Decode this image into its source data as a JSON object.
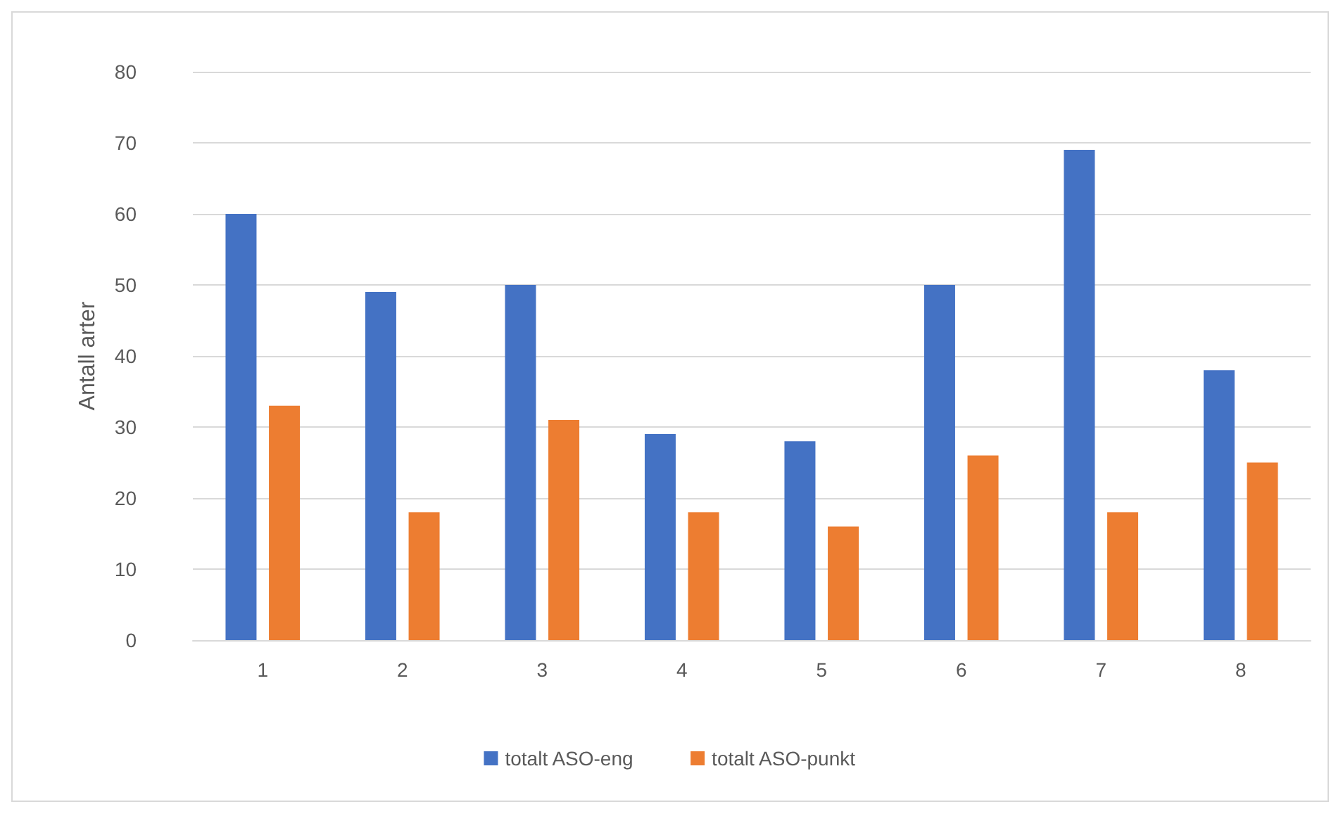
{
  "chart_data": {
    "type": "bar",
    "ylabel": "Antall arter",
    "categories": [
      "1",
      "2",
      "3",
      "4",
      "5",
      "6",
      "7",
      "8"
    ],
    "series": [
      {
        "name": "totalt ASO-eng",
        "color": "#4472c4",
        "values": [
          60,
          49,
          50,
          29,
          28,
          50,
          69,
          38
        ]
      },
      {
        "name": "totalt ASO-punkt",
        "color": "#ed7d31",
        "values": [
          33,
          18,
          31,
          18,
          16,
          26,
          18,
          25
        ]
      }
    ],
    "ylim": [
      0,
      80
    ],
    "yticks": [
      0,
      10,
      20,
      30,
      40,
      50,
      60,
      70,
      80
    ],
    "grid": "y",
    "legend": "bottom"
  }
}
